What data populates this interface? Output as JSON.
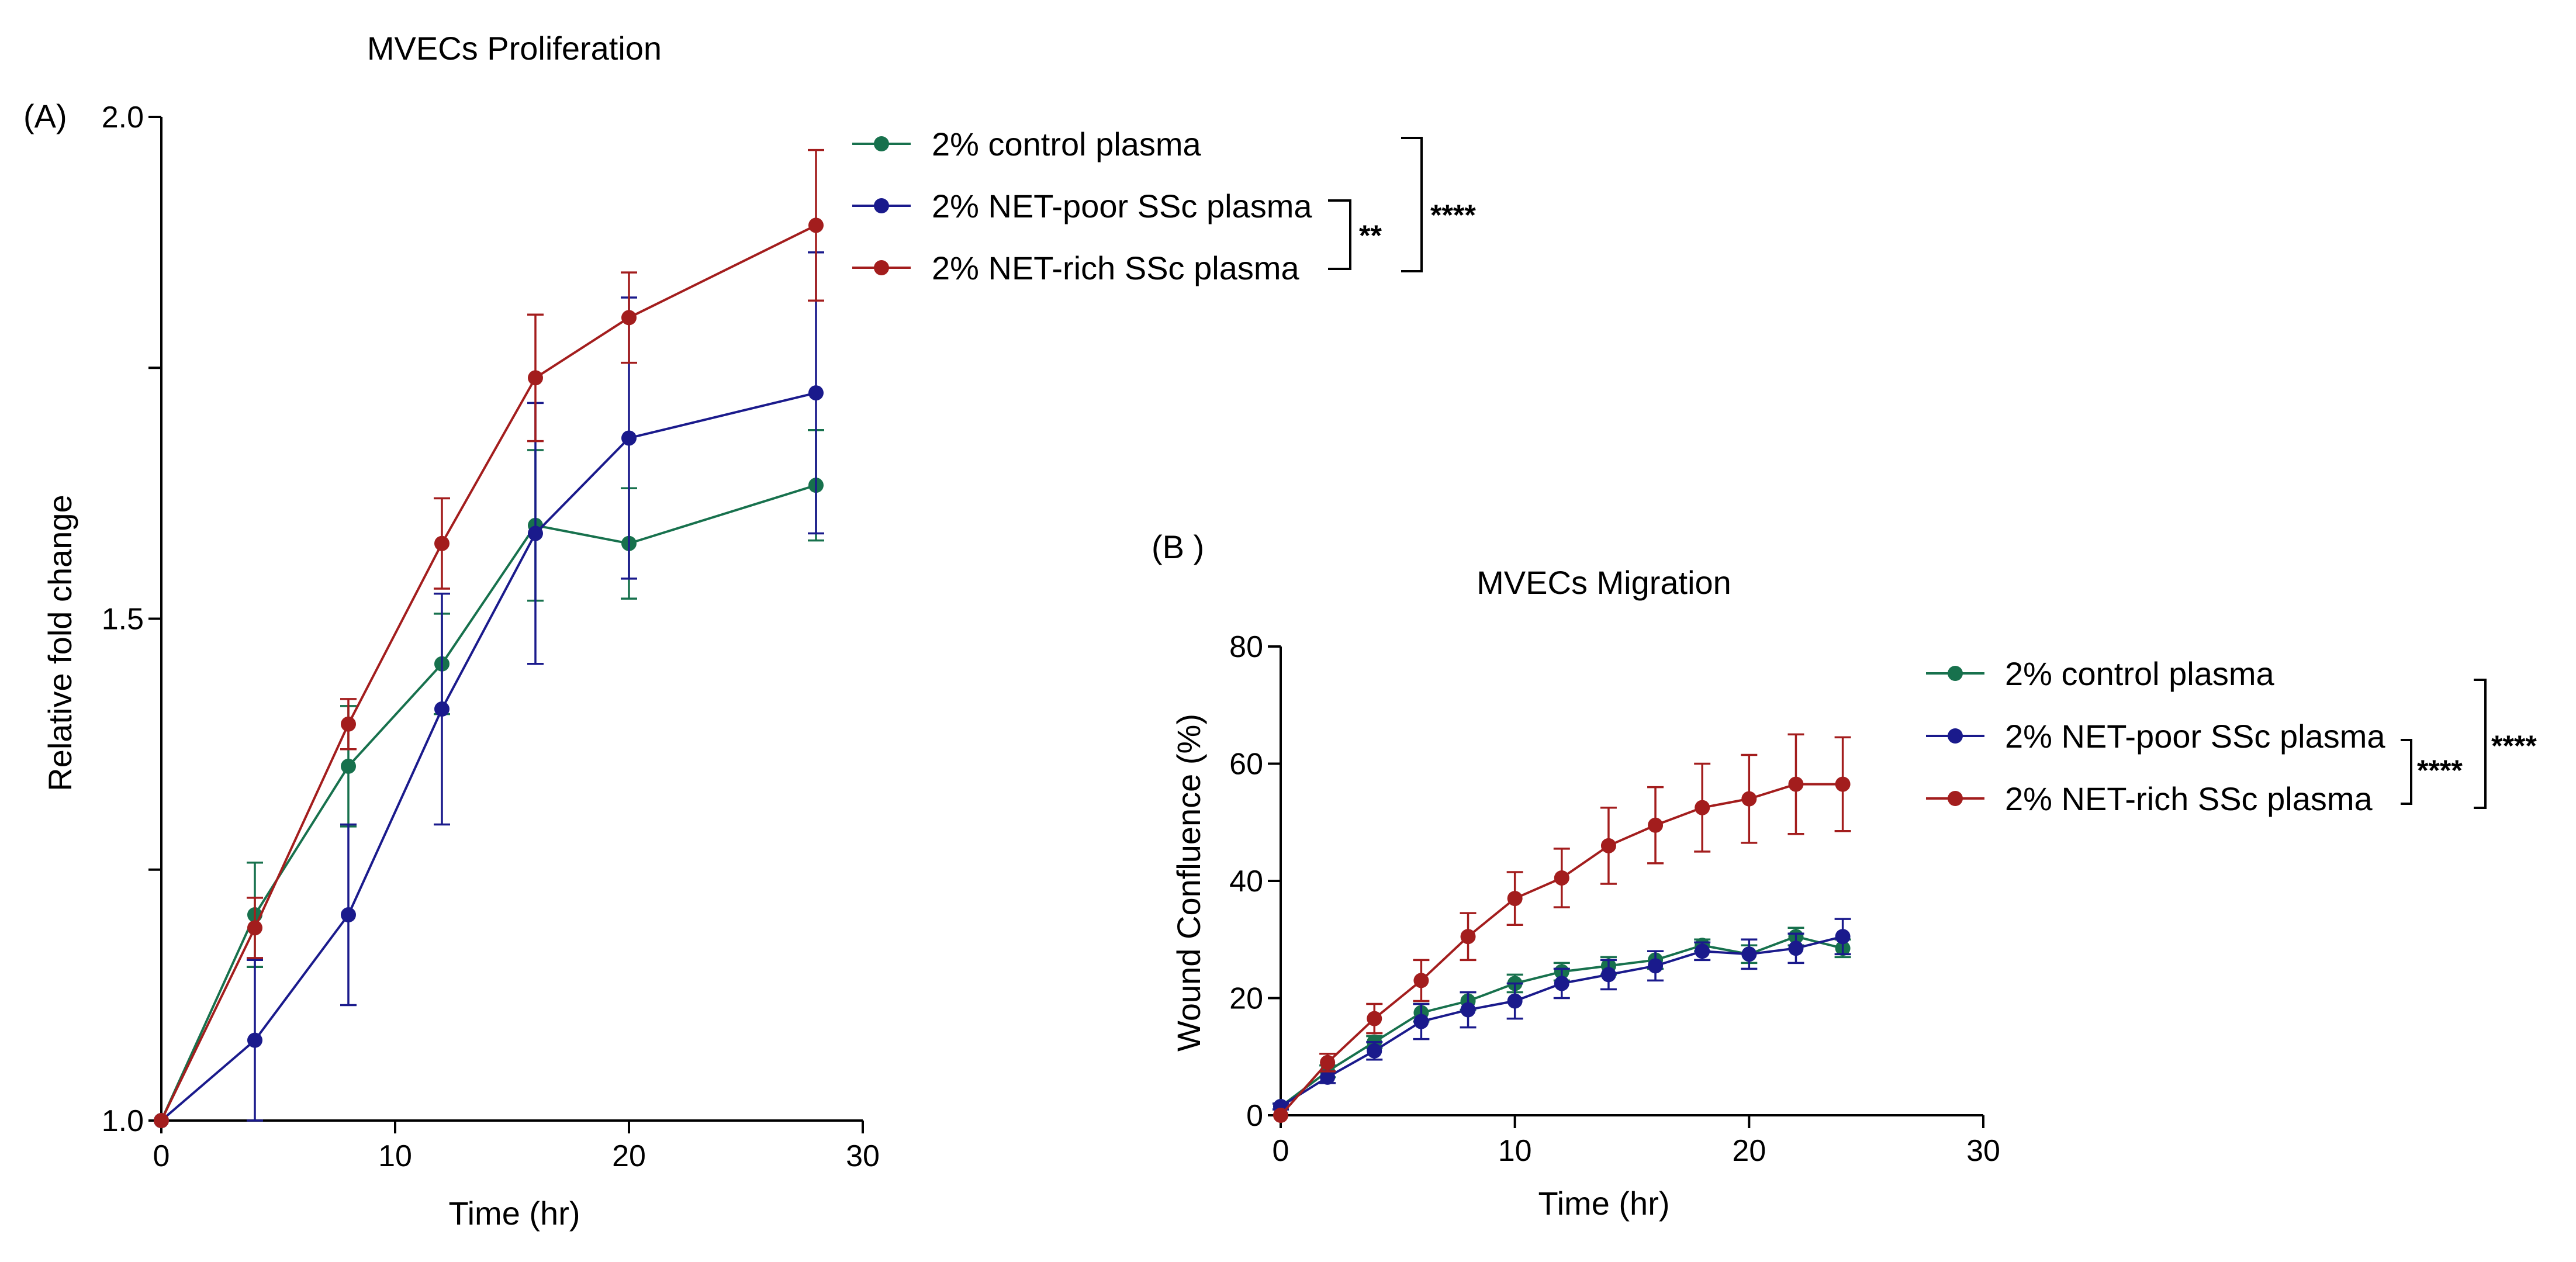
{
  "chart_data": [
    {
      "panel_label": "(A)",
      "type": "line",
      "title": "MVECs Proliferation",
      "xlabel": "Time (hr)",
      "ylabel": "Relative fold change",
      "xlim": [
        0,
        30
      ],
      "ylim": [
        1.0,
        2.0
      ],
      "x_ticks": [
        0,
        10,
        20,
        30
      ],
      "x_tick_labels": [
        "0",
        "10",
        "20",
        "30"
      ],
      "y_ticks": [
        1.0,
        1.25,
        1.5,
        1.75,
        2.0
      ],
      "y_tick_labels": [
        "1.0",
        "",
        "1.5",
        "",
        "2.0"
      ],
      "legend_position": "top-right",
      "x": [
        0,
        4,
        8,
        12,
        16,
        20,
        28
      ],
      "series": [
        {
          "name": "2% control plasma",
          "color": "#17714d",
          "values": [
            1.0,
            1.205,
            1.353,
            1.455,
            1.593,
            1.575,
            1.633
          ],
          "errors": [
            0,
            0.052,
            0.06,
            0.05,
            0.075,
            0.055,
            0.055
          ]
        },
        {
          "name": "2% NET-poor SSc plasma",
          "color": "#1a1a8c",
          "values": [
            1.0,
            1.08,
            1.205,
            1.41,
            1.585,
            1.68,
            1.725
          ],
          "errors": [
            0,
            0.08,
            0.09,
            0.115,
            0.13,
            0.14,
            0.14
          ]
        },
        {
          "name": "2% NET-rich SSc plasma",
          "color": "#a31d1d",
          "values": [
            1.0,
            1.192,
            1.395,
            1.575,
            1.74,
            1.8,
            1.892
          ],
          "errors": [
            0,
            0.03,
            0.025,
            0.045,
            0.063,
            0.045,
            0.075
          ]
        }
      ],
      "significance": [
        {
          "label": "**",
          "between": [
            "2% NET-poor SSc plasma",
            "2% NET-rich SSc plasma"
          ]
        },
        {
          "label": "****",
          "between": [
            "2% control plasma",
            "2% NET-rich SSc plasma"
          ]
        }
      ]
    },
    {
      "panel_label": "(B )",
      "type": "line",
      "title": "MVECs Migration",
      "xlabel": "Time (hr)",
      "ylabel": "Wound Confluence (%)",
      "xlim": [
        0,
        30
      ],
      "ylim": [
        0,
        80
      ],
      "x_ticks": [
        0,
        10,
        20,
        30
      ],
      "x_tick_labels": [
        "0",
        "10",
        "20",
        "30"
      ],
      "y_ticks": [
        0,
        20,
        40,
        60,
        80
      ],
      "y_tick_labels": [
        "0",
        "20",
        "40",
        "60",
        "80"
      ],
      "legend_position": "top-right",
      "x": [
        0,
        2,
        4,
        6,
        8,
        10,
        12,
        14,
        16,
        18,
        20,
        22,
        24
      ],
      "series": [
        {
          "name": "2% control plasma",
          "color": "#17714d",
          "values": [
            1.5,
            7.5,
            12.5,
            17.5,
            19.5,
            22.5,
            24.5,
            25.5,
            26.5,
            29,
            27.5,
            30.5,
            28.5
          ],
          "errors": [
            0.5,
            1.0,
            1.0,
            1.5,
            1.5,
            1.5,
            1.5,
            1.5,
            1.5,
            1.0,
            1.5,
            1.5,
            1.5
          ]
        },
        {
          "name": "2% NET-poor SSc plasma",
          "color": "#1a1a8c",
          "values": [
            1.5,
            6.5,
            11,
            16,
            18,
            19.5,
            22.5,
            24,
            25.5,
            28,
            27.5,
            28.5,
            30.5
          ],
          "errors": [
            0.5,
            1.0,
            1.5,
            3.0,
            3.0,
            3.0,
            2.5,
            2.5,
            2.5,
            1.5,
            2.5,
            2.5,
            3.0
          ]
        },
        {
          "name": "2% NET-rich SSc plasma",
          "color": "#a31d1d",
          "values": [
            0,
            9,
            16.5,
            23,
            30.5,
            37,
            40.5,
            46,
            49.5,
            52.5,
            54,
            56.5,
            56.5
          ],
          "errors": [
            0,
            1.5,
            2.5,
            3.5,
            4.0,
            4.5,
            5.0,
            6.5,
            6.5,
            7.5,
            7.5,
            8.5,
            8.0
          ]
        }
      ],
      "significance": [
        {
          "label": "****",
          "between": [
            "2% NET-poor SSc plasma",
            "2% NET-rich SSc plasma"
          ]
        },
        {
          "label": "****",
          "between": [
            "2% control plasma",
            "2% NET-rich SSc plasma"
          ]
        }
      ]
    }
  ]
}
